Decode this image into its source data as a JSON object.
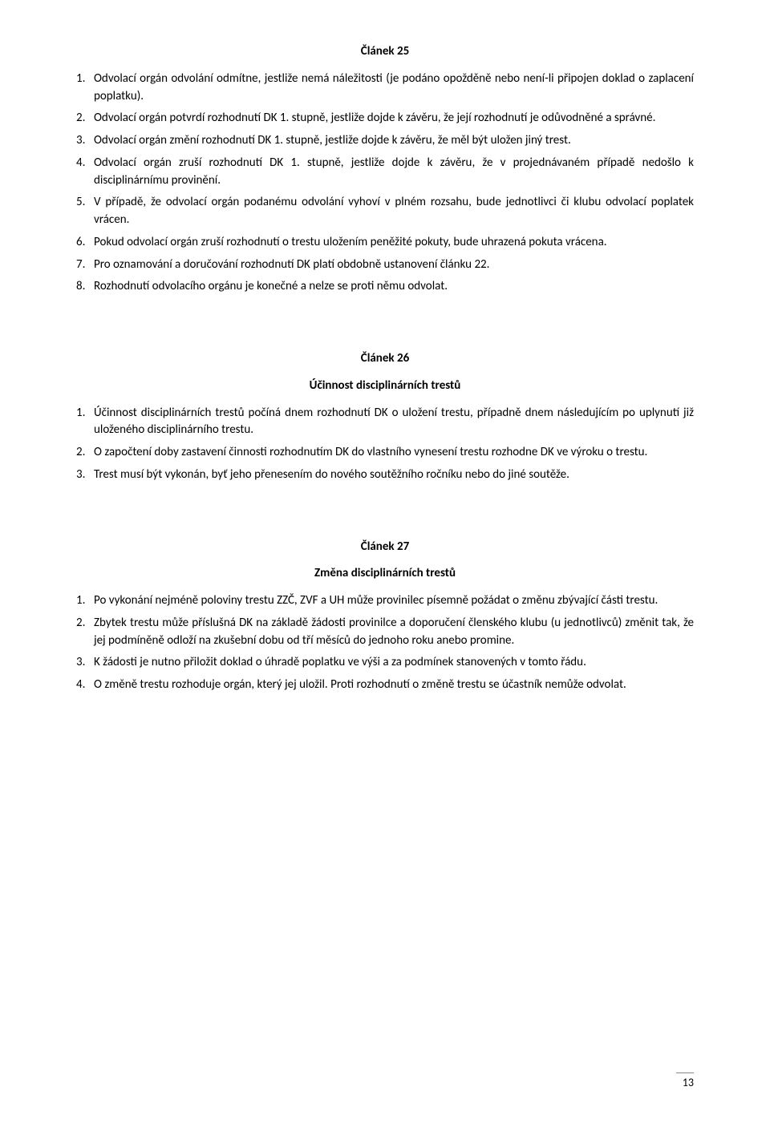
{
  "article25": {
    "title": "Článek 25",
    "items": [
      {
        "num": "1.",
        "text": "Odvolací orgán odvolání odmítne, jestliže nemá náležitosti (je podáno opožděně nebo není-li připojen doklad o zaplacení poplatku)."
      },
      {
        "num": "2.",
        "text": "Odvolací orgán potvrdí rozhodnutí DK 1. stupně, jestliže dojde k závěru, že její rozhodnutí je odůvodněné a správné."
      },
      {
        "num": "3.",
        "text": "Odvolací orgán změní rozhodnutí DK 1. stupně, jestliže dojde k závěru, že měl být uložen jiný trest."
      },
      {
        "num": "4.",
        "text": "Odvolací orgán zruší rozhodnutí DK 1. stupně, jestliže dojde k závěru, že v projednávaném případě nedošlo k disciplinárnímu provinění."
      },
      {
        "num": "5.",
        "text": "V případě, že odvolací orgán podanému odvolání vyhoví v plném rozsahu, bude jednotlivci či klubu odvolací poplatek vrácen."
      },
      {
        "num": "6.",
        "text": "Pokud odvolací orgán zruší rozhodnutí o trestu uložením peněžité pokuty, bude uhrazená pokuta vrácena."
      },
      {
        "num": "7.",
        "text": "Pro oznamování a doručování rozhodnutí DK platí obdobně ustanovení článku 22."
      },
      {
        "num": "8.",
        "text": "Rozhodnutí odvolacího orgánu je konečné a nelze se proti němu odvolat."
      }
    ]
  },
  "article26": {
    "title": "Článek 26",
    "subtitle": "Účinnost disciplinárních trestů",
    "items": [
      {
        "num": "1.",
        "text": "Účinnost disciplinárních trestů počíná dnem rozhodnutí DK o uložení trestu, případně dnem následujícím po uplynutí již uloženého disciplinárního trestu."
      },
      {
        "num": "2.",
        "text": "O započtení doby zastavení činnosti rozhodnutím DK do vlastního vynesení trestu rozhodne DK ve výroku o trestu."
      },
      {
        "num": "3.",
        "text": "Trest musí být vykonán, byť jeho přenesením do nového soutěžního ročníku nebo do jiné soutěže."
      }
    ]
  },
  "article27": {
    "title": "Článek 27",
    "subtitle": "Změna disciplinárních trestů",
    "items": [
      {
        "num": "1.",
        "text": "Po vykonání nejméně poloviny trestu ZZČ, ZVF a UH může provinilec písemně požádat o změnu zbývající části trestu."
      },
      {
        "num": "2.",
        "text": "Zbytek trestu může příslušná DK na základě žádosti provinilce a doporučení členského klubu (u jednotlivců) změnit tak, že jej podmíněně odloží na zkušební dobu od tří měsíců do jednoho roku anebo promine."
      },
      {
        "num": "3.",
        "text": "K žádosti je nutno přiložit doklad o úhradě poplatku ve výši a za podmínek stanovených v tomto řádu."
      },
      {
        "num": "4.",
        "text": "O změně trestu rozhoduje orgán, který jej uložil. Proti rozhodnutí o změně trestu se účastník nemůže odvolat."
      }
    ]
  },
  "page_number": "13"
}
